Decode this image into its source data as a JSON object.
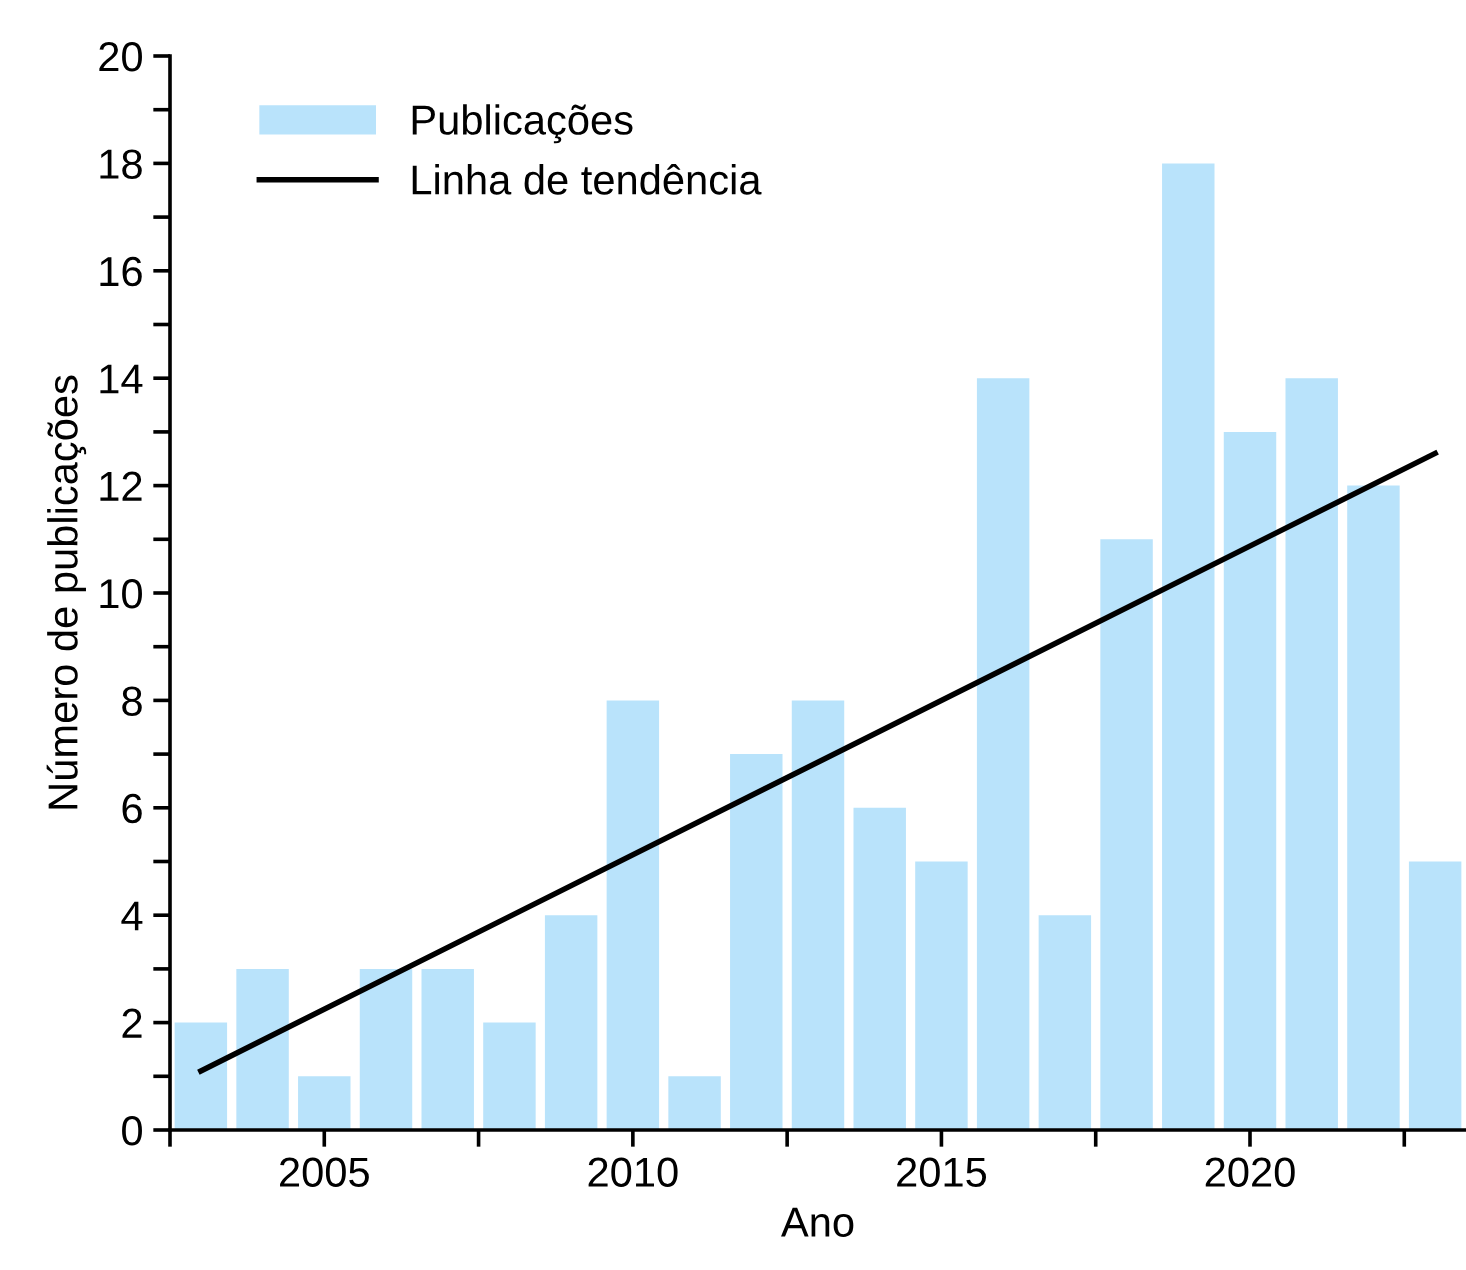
{
  "chart_data": {
    "type": "bar",
    "xlabel": "Ano",
    "ylabel": "Número de publicações",
    "x": [
      2003,
      2004,
      2005,
      2006,
      2007,
      2008,
      2009,
      2010,
      2011,
      2012,
      2013,
      2014,
      2015,
      2016,
      2017,
      2018,
      2019,
      2020,
      2021,
      2022,
      2023
    ],
    "series": [
      {
        "name": "Publicações",
        "color": "#b9e3fb",
        "values": [
          2,
          3,
          1,
          3,
          3,
          2,
          4,
          8,
          1,
          7,
          8,
          6,
          5,
          14,
          4,
          11,
          18,
          13,
          14,
          12,
          5
        ]
      },
      {
        "name": "Linha de tendência",
        "type": "line",
        "color": "#000000",
        "x": [
          2003,
          2023
        ],
        "values": [
          1.1,
          12.6
        ]
      }
    ],
    "xlim": [
      2002.5,
      2023.5
    ],
    "ylim": [
      0,
      20
    ],
    "xticks": [
      {
        "value": 2002.5,
        "label": null
      },
      2005,
      {
        "value": 2007.5,
        "label": null
      },
      2010,
      {
        "value": 2012.5,
        "label": null
      },
      2015,
      {
        "value": 2017.5,
        "label": null
      },
      2020,
      {
        "value": 2022.5,
        "label": null
      }
    ],
    "yticks": [
      0,
      {
        "value": 1,
        "label": null
      },
      2,
      {
        "value": 3,
        "label": null
      },
      4,
      {
        "value": 5,
        "label": null
      },
      6,
      {
        "value": 7,
        "label": null
      },
      8,
      {
        "value": 9,
        "label": null
      },
      10,
      {
        "value": 11,
        "label": null
      },
      12,
      {
        "value": 13,
        "label": null
      },
      14,
      {
        "value": 15,
        "label": null
      },
      16,
      {
        "value": 17,
        "label": null
      },
      18,
      {
        "value": 19,
        "label": null
      },
      20
    ],
    "legend": "top left",
    "grid": false
  }
}
